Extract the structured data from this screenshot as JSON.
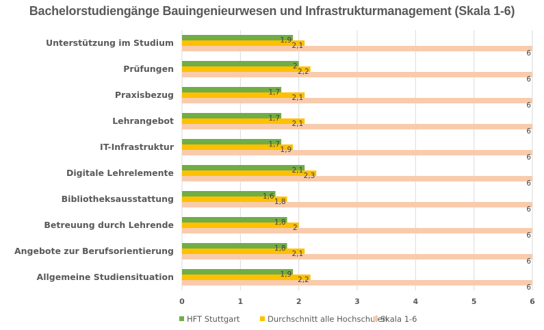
{
  "chart_data": {
    "type": "bar",
    "orientation": "horizontal",
    "title": "Bachelorstudiengänge Bauingenieurwesen und Infrastrukturmanagement  (Skala 1-6)",
    "categories": [
      "Unterstützung im Studium",
      "Prüfungen",
      "Praxisbezug",
      "Lehrangebot",
      "IT-Infrastruktur",
      "Digitale Lehrelemente",
      "Bibliotheksausstattung",
      "Betreuung durch Lehrende",
      "Angebote zur Berufsorientierung",
      "Allgemeine Studiensituation"
    ],
    "series": [
      {
        "name": "HFT Stuttgart",
        "color": "#70AD47",
        "values": [
          1.9,
          2.0,
          1.7,
          1.7,
          1.7,
          2.1,
          1.6,
          1.8,
          1.8,
          1.9
        ],
        "labels": [
          "1,9",
          "2",
          "1,7",
          "1,7",
          "1,7",
          "2,1",
          "1,6",
          "1,8",
          "1,8",
          "1,9"
        ]
      },
      {
        "name": "Durchschnitt alle Hochschulen",
        "color": "#FFC000",
        "values": [
          2.1,
          2.2,
          2.1,
          2.1,
          1.9,
          2.3,
          1.8,
          2.0,
          2.1,
          2.2
        ],
        "labels": [
          "2,1",
          "2,2",
          "2,1",
          "2,1",
          "1,9",
          "2,3",
          "1,8",
          "2",
          "2,1",
          "2,2"
        ]
      },
      {
        "name": "Skala 1-6",
        "color": "#F8CBAD",
        "values": [
          6,
          6,
          6,
          6,
          6,
          6,
          6,
          6,
          6,
          6
        ],
        "labels": [
          "6",
          "6",
          "6",
          "6",
          "6",
          "6",
          "6",
          "6",
          "6",
          "6"
        ]
      }
    ],
    "xlabel": "",
    "ylabel": "",
    "xlim": [
      0,
      6
    ],
    "xticks": [
      "0",
      "1",
      "2",
      "3",
      "4",
      "5",
      "6"
    ],
    "grid": true,
    "legend_position": "bottom"
  }
}
